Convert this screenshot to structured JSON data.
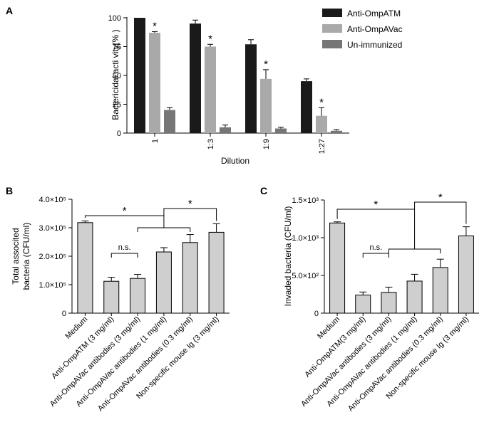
{
  "chart_data": [
    {
      "panel": "A",
      "type": "bar",
      "xlabel": "Dilution",
      "ylabel": "Bactericidal   acti vity(% )",
      "ylim": [
        0,
        100
      ],
      "yticks": [
        0,
        25,
        50,
        75,
        100
      ],
      "categories": [
        "1",
        "1:3",
        "1:9",
        "1:27"
      ],
      "legend_position": "top-right",
      "series": [
        {
          "name": "Anti-OmpATM",
          "color": "#1a1a1a",
          "values": [
            100,
            95,
            77,
            45
          ],
          "errors": [
            0,
            3,
            4,
            2
          ]
        },
        {
          "name": "Anti-OmpAVac",
          "color": "#a9a9a9",
          "values": [
            87,
            75,
            47,
            15
          ],
          "errors": [
            1,
            2,
            8,
            7
          ]
        },
        {
          "name": "Un-immunized",
          "color": "#767676",
          "values": [
            20,
            5,
            4,
            2
          ],
          "errors": [
            2,
            2,
            1,
            1
          ]
        }
      ],
      "significance": [
        "*",
        "*",
        "*",
        "*"
      ]
    },
    {
      "panel": "B",
      "type": "bar",
      "ylabel_line1": "Total associted",
      "ylabel_line2": "bacteria (CFU/ml)",
      "ytick_labels": [
        "0",
        "1.0×10⁵",
        "2.0×10⁵",
        "3.0×10⁵",
        "4.0×10⁵"
      ],
      "ylim": [
        0,
        400000
      ],
      "categories": [
        "Medium",
        "Anti-OmpATM (3 mg/ml)",
        "Anti-OmpAVac antibodies (3 mg/ml)",
        "Anti-OmpAVac antibodies (1 mg/ml)",
        "Anti-OmpAVac antibodies (0.3 mg/ml)",
        "Non-specific mouse Ig (3 mg/ml)"
      ],
      "values": [
        318000,
        112000,
        122000,
        215000,
        248000,
        284000
      ],
      "errors": [
        6000,
        14000,
        14000,
        15000,
        28000,
        30000
      ],
      "bar_color": "#cfcfcf",
      "annotations": {
        "star_left": "*",
        "star_right": "*",
        "ns": "n.s."
      }
    },
    {
      "panel": "C",
      "type": "bar",
      "ylabel": "Invaded bacteria (CFU/ml)",
      "ytick_labels": [
        "0",
        "5.0×10²",
        "1.0×10³",
        "1.5×10³"
      ],
      "ylim": [
        0,
        1500
      ],
      "categories": [
        "Medium",
        "Anti-OmpATM(3 mg/ml)",
        "Anti-OmpAVac antibodies (3 mg/ml)",
        "Anti-OmpAVac antibodies (1 mg/ml)",
        "Anti-OmpAVac antibodies (0.3 mg/ml)",
        "Non-specific mouse Ig (3 mg/ml)"
      ],
      "values": [
        1195,
        240,
        275,
        425,
        605,
        1025
      ],
      "errors": [
        15,
        40,
        70,
        90,
        110,
        120
      ],
      "bar_color": "#cfcfcf",
      "annotations": {
        "star_left": "*",
        "star_right": "*",
        "ns": "n.s."
      }
    }
  ]
}
